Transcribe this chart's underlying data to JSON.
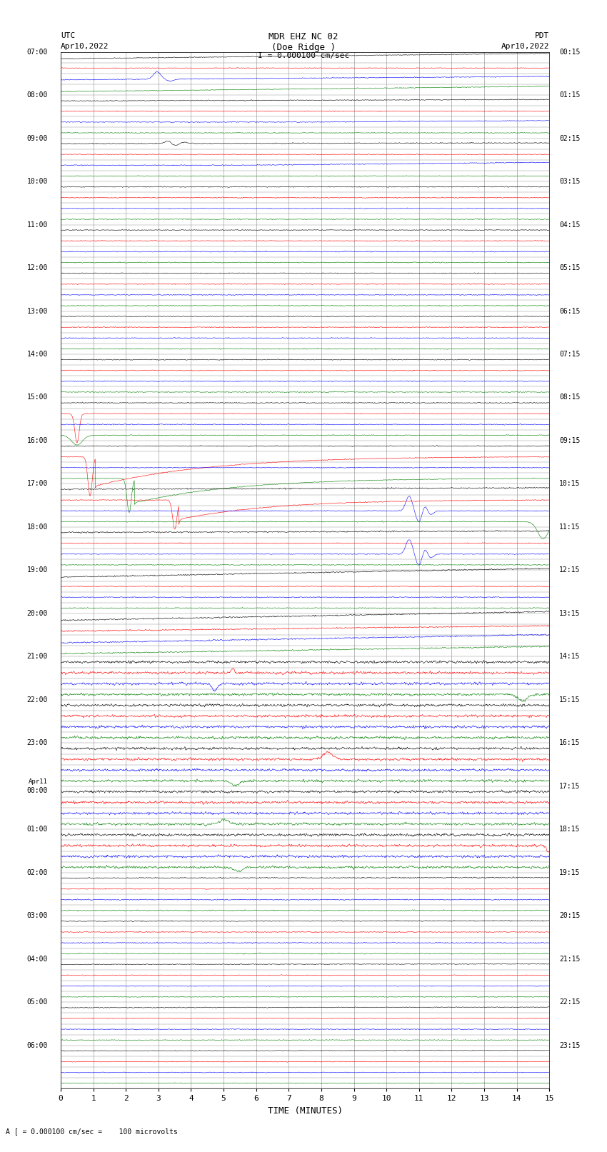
{
  "title_line1": "MDR EHZ NC 02",
  "title_line2": "(Doe Ridge )",
  "scale_label": "I = 0.000100 cm/sec",
  "left_header_line1": "UTC",
  "left_header_line2": "Apr10,2022",
  "right_header_line1": "PDT",
  "right_header_line2": "Apr10,2022",
  "xlabel": "TIME (MINUTES)",
  "bottom_note": "A [ = 0.000100 cm/sec =    100 microvolts",
  "fig_width": 8.5,
  "fig_height": 16.13,
  "bg_color": "#ffffff",
  "grid_color": "#888888",
  "trace_colors": [
    "#000000",
    "#ff0000",
    "#0000ff",
    "#008000"
  ],
  "utc_times": [
    "07:00",
    "",
    "",
    "",
    "08:00",
    "",
    "",
    "",
    "09:00",
    "",
    "",
    "",
    "10:00",
    "",
    "",
    "",
    "11:00",
    "",
    "",
    "",
    "12:00",
    "",
    "",
    "",
    "13:00",
    "",
    "",
    "",
    "14:00",
    "",
    "",
    "",
    "15:00",
    "",
    "",
    "",
    "16:00",
    "",
    "",
    "",
    "17:00",
    "",
    "",
    "",
    "18:00",
    "",
    "",
    "",
    "19:00",
    "",
    "",
    "",
    "20:00",
    "",
    "",
    "",
    "21:00",
    "",
    "",
    "",
    "22:00",
    "",
    "",
    "",
    "23:00",
    "",
    "",
    "",
    "Apr11 00:00",
    "",
    "",
    "",
    "01:00",
    "",
    "",
    "",
    "02:00",
    "",
    "",
    "",
    "03:00",
    "",
    "",
    "",
    "04:00",
    "",
    "",
    "",
    "05:00",
    "",
    "",
    "",
    "06:00",
    "",
    "",
    ""
  ],
  "pdt_times": [
    "00:15",
    "",
    "",
    "",
    "01:15",
    "",
    "",
    "",
    "02:15",
    "",
    "",
    "",
    "03:15",
    "",
    "",
    "",
    "04:15",
    "",
    "",
    "",
    "05:15",
    "",
    "",
    "",
    "06:15",
    "",
    "",
    "",
    "07:15",
    "",
    "",
    "",
    "08:15",
    "",
    "",
    "",
    "09:15",
    "",
    "",
    "",
    "10:15",
    "",
    "",
    "",
    "11:15",
    "",
    "",
    "",
    "12:15",
    "",
    "",
    "",
    "13:15",
    "",
    "",
    "",
    "14:15",
    "",
    "",
    "",
    "15:15",
    "",
    "",
    "",
    "16:15",
    "",
    "",
    "",
    "17:15",
    "",
    "",
    "",
    "18:15",
    "",
    "",
    "",
    "19:15",
    "",
    "",
    "",
    "20:15",
    "",
    "",
    "",
    "21:15",
    "",
    "",
    "",
    "22:15",
    "",
    "",
    "",
    "23:15",
    "",
    "",
    ""
  ],
  "n_rows": 96,
  "xmin": 0,
  "xmax": 15,
  "xticks": [
    0,
    1,
    2,
    3,
    4,
    5,
    6,
    7,
    8,
    9,
    10,
    11,
    12,
    13,
    14,
    15
  ]
}
